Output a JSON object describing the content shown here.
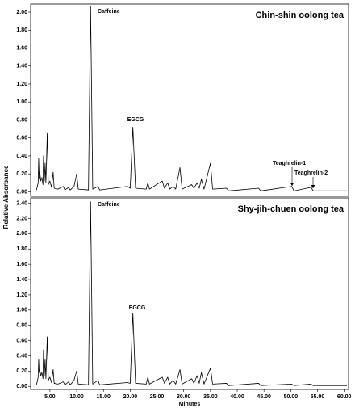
{
  "y_label": "Relative Absorbance",
  "x_label": "Minutes",
  "chart_data": [
    {
      "type": "line",
      "title": "Chin-shin oolong tea",
      "color": "#000000",
      "annotations": [
        "Caffeine",
        "EGCG",
        "Teaghrelin-1",
        "Teaghrelin-2"
      ],
      "xlim": [
        1.4,
        60.8
      ],
      "ylim": [
        -0.05,
        2.09
      ],
      "yticks": [
        {
          "value": 0,
          "label": "0.00"
        },
        {
          "value": 0.2,
          "label": "0.20"
        },
        {
          "value": 0.4,
          "label": "0.40"
        },
        {
          "value": 0.6,
          "label": "0.60"
        },
        {
          "value": 0.8,
          "label": "0.80"
        },
        {
          "value": 1,
          "label": "1.00"
        },
        {
          "value": 1.2,
          "label": "1.20"
        },
        {
          "value": 1.4,
          "label": "1.40"
        },
        {
          "value": 1.6,
          "label": "1.60"
        },
        {
          "value": 1.8,
          "label": "1.80"
        },
        {
          "value": 2,
          "label": "2.00"
        }
      ],
      "x": [
        2.5,
        2.8,
        2.9,
        3.0,
        3.1,
        3.3,
        3.5,
        3.7,
        3.8,
        3.95,
        4.1,
        4.25,
        4.5,
        4.7,
        5.0,
        5.3,
        5.6,
        5.8,
        6.5,
        7.5,
        7.8,
        8.5,
        8.8,
        9.5,
        10.0,
        10.3,
        12.2,
        12.6,
        13.0,
        14.0,
        14.3,
        19.5,
        20.0,
        20.5,
        21.0,
        23.0,
        23.3,
        23.6,
        26.0,
        26.4,
        27.0,
        27.4,
        28.0,
        28.5,
        29.3,
        29.7,
        31.5,
        31.9,
        32.5,
        32.9,
        33.3,
        33.8,
        35.0,
        35.4,
        38.0,
        38.4,
        44.0,
        44.4,
        50.2,
        50.6,
        53.8,
        54.2,
        60.5
      ],
      "values": [
        0.02,
        0.1,
        0.37,
        0.15,
        0.22,
        0.12,
        0.16,
        0.08,
        0.4,
        0.12,
        0.32,
        0.1,
        0.65,
        0.08,
        0.12,
        0.05,
        0.22,
        0.04,
        0.03,
        0.06,
        0.02,
        0.05,
        0.02,
        0.06,
        0.2,
        0.03,
        0.02,
        2.07,
        0.03,
        0.06,
        0.02,
        0.06,
        0.04,
        0.72,
        0.04,
        0.03,
        0.1,
        0.03,
        0.12,
        0.04,
        0.1,
        0.03,
        0.06,
        0.03,
        0.27,
        0.03,
        0.08,
        0.04,
        0.1,
        0.04,
        0.14,
        0.03,
        0.32,
        0.03,
        0.04,
        0.01,
        0.04,
        0.01,
        0.06,
        0.01,
        0.05,
        0.01,
        0.01
      ]
    },
    {
      "type": "line",
      "title": "Shy-jih-chuen oolong tea",
      "color": "#000000",
      "annotations": [
        "Caffeine",
        "EGCG"
      ],
      "xlim": [
        1.4,
        60.8
      ],
      "ylim": [
        -0.04,
        2.47
      ],
      "yticks": [
        {
          "value": 0,
          "label": "0.00"
        },
        {
          "value": 0.2,
          "label": "0.20"
        },
        {
          "value": 0.4,
          "label": "0.40"
        },
        {
          "value": 0.6,
          "label": "0.60"
        },
        {
          "value": 0.8,
          "label": "0.80"
        },
        {
          "value": 1,
          "label": "1.00"
        },
        {
          "value": 1.2,
          "label": "1.20"
        },
        {
          "value": 1.4,
          "label": "1.40"
        },
        {
          "value": 1.6,
          "label": "1.60"
        },
        {
          "value": 1.8,
          "label": "1.80"
        },
        {
          "value": 2,
          "label": "2.00"
        },
        {
          "value": 2.2,
          "label": "2.20"
        },
        {
          "value": 2.4,
          "label": "2.40"
        }
      ],
      "xticks": [
        {
          "value": 5,
          "label": "5.00"
        },
        {
          "value": 10,
          "label": "10.00"
        },
        {
          "value": 15,
          "label": "15.00"
        },
        {
          "value": 20,
          "label": "20.00"
        },
        {
          "value": 25,
          "label": "25.00"
        },
        {
          "value": 30,
          "label": "30.00"
        },
        {
          "value": 35,
          "label": "35.00"
        },
        {
          "value": 40,
          "label": "40.00"
        },
        {
          "value": 45,
          "label": "45.00"
        },
        {
          "value": 50,
          "label": "50.00"
        },
        {
          "value": 55,
          "label": "55.00"
        },
        {
          "value": 60,
          "label": "60.00"
        }
      ],
      "x": [
        2.5,
        2.8,
        2.9,
        3.0,
        3.1,
        3.3,
        3.5,
        3.7,
        3.8,
        3.95,
        4.1,
        4.25,
        4.5,
        4.7,
        5.0,
        5.3,
        5.6,
        5.8,
        6.5,
        7.5,
        7.8,
        8.5,
        8.8,
        9.5,
        10.0,
        10.3,
        12.2,
        12.6,
        13.0,
        14.0,
        14.3,
        19.5,
        20.0,
        20.5,
        21.0,
        23.0,
        23.3,
        23.6,
        26.0,
        26.4,
        27.0,
        27.4,
        28.0,
        28.5,
        29.3,
        29.7,
        31.5,
        31.9,
        32.5,
        32.9,
        33.3,
        33.8,
        35.0,
        35.4,
        38.0,
        38.4,
        44.0,
        44.4,
        50.2,
        50.6,
        53.8,
        54.2,
        60.5
      ],
      "values": [
        0.02,
        0.12,
        0.36,
        0.18,
        0.22,
        0.14,
        0.18,
        0.1,
        0.48,
        0.14,
        0.36,
        0.1,
        0.65,
        0.08,
        0.12,
        0.05,
        0.22,
        0.04,
        0.03,
        0.06,
        0.02,
        0.06,
        0.02,
        0.08,
        0.2,
        0.03,
        0.02,
        2.42,
        0.03,
        0.08,
        0.02,
        0.05,
        0.04,
        0.96,
        0.04,
        0.03,
        0.12,
        0.03,
        0.12,
        0.04,
        0.12,
        0.03,
        0.08,
        0.03,
        0.22,
        0.03,
        0.1,
        0.04,
        0.14,
        0.04,
        0.18,
        0.03,
        0.24,
        0.03,
        0.04,
        0.01,
        0.04,
        0.01,
        0.03,
        0.01,
        0.03,
        0.01,
        0.01
      ]
    }
  ]
}
